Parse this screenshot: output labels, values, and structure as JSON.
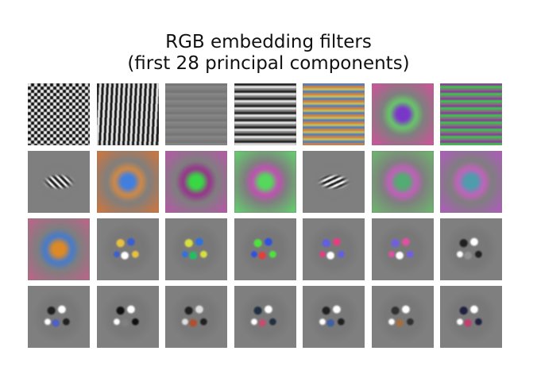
{
  "figure": {
    "title_line1": "RGB embedding filters",
    "title_line2": "(first 28 principal components)",
    "rows": 4,
    "cols": 7,
    "background": "#ffffff",
    "tile_background": "#7f7f7f"
  },
  "filters": [
    {
      "style": "checker"
    },
    {
      "style": "vstripes",
      "angle": 93
    },
    {
      "style": "hstripes",
      "faint": true
    },
    {
      "style": "hstripes"
    },
    {
      "style": "hstripes",
      "colors": [
        "#d6823c",
        "#4f7fc4",
        "#c8c05a"
      ]
    },
    {
      "style": "blob",
      "center": "#7a2fd0",
      "ring": "#66d066",
      "edge": "#e04aa0"
    },
    {
      "style": "hstripes",
      "colors": [
        "#39c849",
        "#8a3d9a",
        "#7a7a7a"
      ]
    },
    {
      "style": "diag",
      "angle": 45
    },
    {
      "style": "blob",
      "center": "#3b7fe8",
      "ring": "#d98a3f",
      "edge": "#e0742f"
    },
    {
      "style": "blob",
      "center": "#33e040",
      "ring": "#9b2a8d",
      "edge": "#c050b0"
    },
    {
      "style": "blob",
      "center": "#52e05a",
      "ring": "#c84bb8",
      "edge": "#5fe06a"
    },
    {
      "style": "diag",
      "angle": -25
    },
    {
      "style": "blob",
      "center": "#50b070",
      "ring": "#c85cc0",
      "edge": "#6bc06a"
    },
    {
      "style": "blob",
      "center": "#4aa0b0",
      "ring": "#c860c0",
      "edge": "#b855c8"
    },
    {
      "style": "blob",
      "center": "#e68a1e",
      "ring": "#3d7ad8",
      "edge": "#c9608a"
    },
    {
      "style": "spots",
      "colors": [
        "#e8c040",
        "#3a60d0",
        "#ffffff"
      ]
    },
    {
      "style": "spots",
      "colors": [
        "#d8e040",
        "#3070e0",
        "#20c060"
      ]
    },
    {
      "style": "spots",
      "colors": [
        "#50e040",
        "#3050e0",
        "#e04040"
      ]
    },
    {
      "style": "spots",
      "colors": [
        "#6060e0",
        "#e04080",
        "#ffffff"
      ]
    },
    {
      "style": "spots",
      "colors": [
        "#7060e0",
        "#e050a0",
        "#ffffff"
      ]
    },
    {
      "style": "spots",
      "colors": [
        "#202020",
        "#ffffff",
        "#909090"
      ]
    },
    {
      "style": "spots",
      "colors": [
        "#202020",
        "#ffffff",
        "#5060c0"
      ]
    },
    {
      "style": "spots",
      "colors": [
        "#101010",
        "#ffffff",
        "#808080"
      ]
    },
    {
      "style": "spots",
      "colors": [
        "#202020",
        "#e0e0e0",
        "#b05030"
      ]
    },
    {
      "style": "spots",
      "colors": [
        "#203040",
        "#ffffff",
        "#c05070"
      ]
    },
    {
      "style": "spots",
      "colors": [
        "#202020",
        "#ffffff",
        "#4060a0"
      ]
    },
    {
      "style": "spots",
      "colors": [
        "#303030",
        "#ffffff",
        "#a07040"
      ]
    },
    {
      "style": "spots",
      "colors": [
        "#202040",
        "#ffffff",
        "#c04070"
      ]
    }
  ]
}
